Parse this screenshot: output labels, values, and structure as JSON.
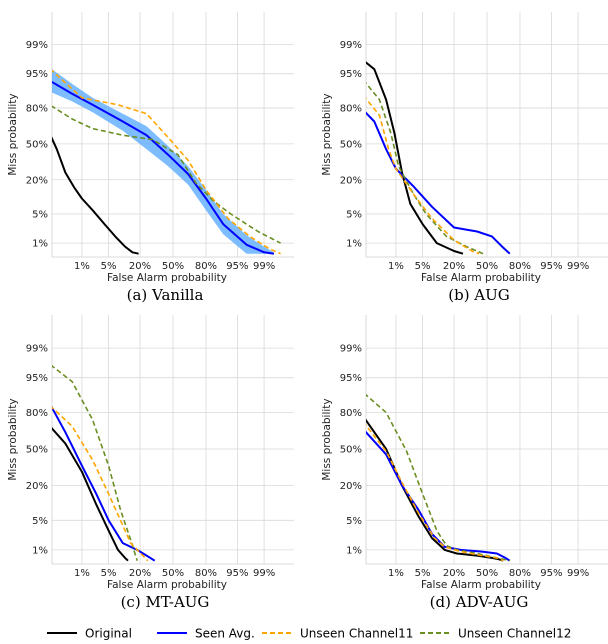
{
  "chart_data": [
    {
      "type": "line",
      "caption": "(a) Vanilla",
      "xlabel": "False Alarm probability",
      "ylabel": "Miss probability",
      "scale": "normal-deviate (DET)",
      "xticks": [
        "1%",
        "5%",
        "20%",
        "50%",
        "80%",
        "95%",
        "99%"
      ],
      "yticks": [
        "1%",
        "5%",
        "20%",
        "50%",
        "80%",
        "95%",
        "99%"
      ],
      "grid": true,
      "series": [
        {
          "name": "Original",
          "x": [
            0.05,
            0.15,
            0.3,
            0.6,
            1,
            2,
            4,
            7,
            11,
            15,
            19
          ],
          "y": [
            70,
            45,
            25,
            15,
            10,
            6,
            3,
            1.5,
            0.8,
            0.55,
            0.5
          ]
        },
        {
          "name": "Seen Avg.",
          "x": [
            0.05,
            0.5,
            2,
            10,
            25,
            45,
            65,
            80,
            90,
            97,
            99,
            99.5
          ],
          "y": [
            94,
            88,
            82,
            70,
            58,
            40,
            24,
            10,
            3,
            0.9,
            0.55,
            0.5
          ],
          "band_lower": [
            90,
            84,
            77,
            62,
            45,
            30,
            17,
            6,
            1.7,
            0.5,
            0.5,
            0.5
          ],
          "band_upper": [
            97,
            92,
            86,
            76,
            66,
            48,
            30,
            14,
            5,
            1.6,
            0.8,
            0.55
          ]
        },
        {
          "name": "Unseen Channel11",
          "x": [
            0.05,
            1,
            8,
            25,
            45,
            65,
            80,
            92,
            97.5,
            99.3,
            99.7
          ],
          "y": [
            97,
            86,
            82,
            76,
            56,
            35,
            14,
            4,
            1.5,
            0.7,
            0.5
          ]
        },
        {
          "name": "Unseen Channel12",
          "x": [
            0.05,
            0.5,
            2,
            10,
            30,
            55,
            72,
            85,
            93,
            98.5,
            99.7
          ],
          "y": [
            84,
            72,
            64,
            58,
            54,
            40,
            18,
            9,
            5,
            2,
            1
          ]
        }
      ]
    },
    {
      "type": "line",
      "caption": "(b) AUG",
      "xlabel": "False Alarm probability",
      "ylabel": "Miss probability",
      "scale": "normal-deviate (DET)",
      "xticks": [
        "1%",
        "5%",
        "20%",
        "50%",
        "80%",
        "95%",
        "99%"
      ],
      "yticks": [
        "1%",
        "5%",
        "20%",
        "50%",
        "80%",
        "95%",
        "99%"
      ],
      "grid": true,
      "series": [
        {
          "name": "Original",
          "x": [
            0.05,
            0.2,
            0.5,
            0.9,
            1.5,
            2.5,
            5,
            10,
            20,
            27
          ],
          "y": [
            98,
            96,
            85,
            60,
            25,
            8,
            3,
            1,
            0.6,
            0.5
          ]
        },
        {
          "name": "Seen Avg.",
          "x": [
            0.05,
            0.2,
            0.5,
            1,
            3,
            8,
            20,
            40,
            55,
            65,
            72
          ],
          "y": [
            82,
            70,
            45,
            28,
            16,
            7,
            2.5,
            2,
            1.5,
            0.8,
            0.5
          ]
        },
        {
          "name": "Unseen Channel11",
          "x": [
            0.05,
            0.3,
            0.6,
            1,
            3,
            8,
            20,
            35,
            42
          ],
          "y": [
            90,
            75,
            45,
            28,
            12,
            4,
            1.2,
            0.6,
            0.5
          ]
        },
        {
          "name": "Unseen Channel12",
          "x": [
            0.05,
            0.3,
            0.7,
            1.2,
            3,
            6,
            15,
            30,
            46
          ],
          "y": [
            95,
            85,
            60,
            30,
            12,
            5,
            1.5,
            0.8,
            0.5
          ]
        }
      ]
    },
    {
      "type": "line",
      "caption": "(c) MT-AUG",
      "xlabel": "False Alarm probability",
      "ylabel": "Miss probability",
      "scale": "normal-deviate (DET)",
      "xticks": [
        "1%",
        "5%",
        "20%",
        "50%",
        "80%",
        "95%",
        "99%"
      ],
      "yticks": [
        "1%",
        "5%",
        "20%",
        "50%",
        "80%",
        "95%",
        "99%"
      ],
      "grid": true,
      "series": [
        {
          "name": "Original",
          "x": [
            0.05,
            0.3,
            1,
            2.5,
            5,
            8,
            11,
            12.5
          ],
          "y": [
            75,
            55,
            30,
            10,
            3,
            1,
            0.6,
            0.5
          ]
        },
        {
          "name": "Seen Avg.",
          "x": [
            0.05,
            0.3,
            1,
            2.5,
            5,
            10,
            18,
            25,
            32
          ],
          "y": [
            90,
            65,
            35,
            15,
            5,
            1.5,
            1,
            0.7,
            0.5
          ]
        },
        {
          "name": "Unseen Channel11",
          "x": [
            0.05,
            0.5,
            2,
            5,
            9,
            14,
            22,
            26
          ],
          "y": [
            87,
            70,
            40,
            15,
            5,
            1.5,
            0.7,
            0.5
          ]
        },
        {
          "name": "Unseen Channel12",
          "x": [
            0.05,
            0.5,
            2,
            5,
            9,
            14,
            18
          ],
          "y": [
            98,
            94,
            75,
            35,
            8,
            1.8,
            0.5
          ]
        }
      ]
    },
    {
      "type": "line",
      "caption": "(d) ADV-AUG",
      "xlabel": "False Alarm probability",
      "ylabel": "Miss probability",
      "scale": "normal-deviate (DET)",
      "xticks": [
        "1%",
        "5%",
        "20%",
        "50%",
        "80%",
        "95%",
        "99%"
      ],
      "yticks": [
        "1%",
        "5%",
        "20%",
        "50%",
        "80%",
        "95%",
        "99%"
      ],
      "grid": true,
      "series": [
        {
          "name": "Original",
          "x": [
            0.05,
            0.5,
            1.5,
            4,
            8,
            14,
            22,
            40,
            55,
            62,
            66
          ],
          "y": [
            82,
            50,
            20,
            6,
            2,
            1,
            0.8,
            0.7,
            0.6,
            0.55,
            0.5
          ]
        },
        {
          "name": "Seen Avg.",
          "x": [
            0.05,
            0.5,
            1.5,
            4,
            8,
            14,
            25,
            45,
            60,
            68,
            72
          ],
          "y": [
            72,
            45,
            20,
            8,
            2.5,
            1.2,
            1,
            0.9,
            0.8,
            0.6,
            0.5
          ]
        },
        {
          "name": "Unseen Channel11",
          "x": [
            0.05,
            0.5,
            1.5,
            4,
            9,
            14,
            25,
            45,
            60,
            66
          ],
          "y": [
            78,
            48,
            22,
            7,
            2,
            1.2,
            0.9,
            0.7,
            0.6,
            0.5
          ]
        },
        {
          "name": "Unseen Channel12",
          "x": [
            0.05,
            0.5,
            2,
            5,
            10,
            15,
            22,
            40,
            60,
            72
          ],
          "y": [
            92,
            80,
            48,
            15,
            3,
            1.3,
            1,
            0.8,
            0.6,
            0.5
          ]
        }
      ]
    }
  ],
  "legend": {
    "placement": "bottom",
    "entries": [
      {
        "label": "Original",
        "color": "#000000",
        "style": "solid"
      },
      {
        "label": "Seen Avg.",
        "color": "#0000ff",
        "style": "solid"
      },
      {
        "label": "Unseen Channel11",
        "color": "#ffa500",
        "style": "dashed"
      },
      {
        "label": "Unseen Channel12",
        "color": "#6b8e23",
        "style": "dashed"
      }
    ]
  },
  "colors": {
    "Original": "#000000",
    "Seen Avg.": "#0000ff",
    "Seen Avg. band": "#66b2ff",
    "Unseen Channel11": "#ffa500",
    "Unseen Channel12": "#6b8e23"
  }
}
